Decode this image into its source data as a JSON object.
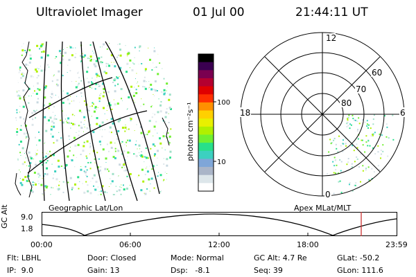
{
  "header": {
    "instrument": "Ultraviolet Imager",
    "date": "01 Jul 00",
    "time": "21:44:11 UT"
  },
  "colorbar": {
    "unit_label": "photon cm⁻²s⁻¹",
    "tick_labels": [
      "100",
      "10"
    ],
    "colors": [
      "#ffffff",
      "#dde6ea",
      "#aab5c8",
      "#7fa6d8",
      "#3cd0c0",
      "#28e08a",
      "#70f030",
      "#b0f000",
      "#e8f000",
      "#ffd000",
      "#ff9000",
      "#ff3000",
      "#e00000",
      "#b40030",
      "#7a0050",
      "#3a0050",
      "#000000"
    ]
  },
  "left_panel": {
    "caption": "Geographic Lat/Lon"
  },
  "right_panel": {
    "caption": "Apex MLat/MLT",
    "mlt_labels": [
      "12",
      "18",
      "6",
      "0"
    ],
    "lat_labels": [
      "60",
      "70",
      "80"
    ]
  },
  "altitude_plot": {
    "axis_label": "GC Alt",
    "y_ticks": [
      "9.0",
      "1.8"
    ],
    "x_ticks": [
      "00:00",
      "06:00",
      "12:00",
      "18:00",
      "23:59"
    ],
    "marker_color": "#cc3333"
  },
  "footer": {
    "row1": {
      "flt": "Flt: LBHL",
      "door": "Door: Closed",
      "mode": "Mode: Normal",
      "gcalt": "GC Alt: 4.7 Re",
      "glat": "GLat: -50.2"
    },
    "row2": {
      "ip": "IP:  9.0",
      "gain": "Gain: 13",
      "dsp": "Dsp:   -8.1",
      "seq": "Seq: 39",
      "glon": "GLon: 111.6"
    }
  }
}
